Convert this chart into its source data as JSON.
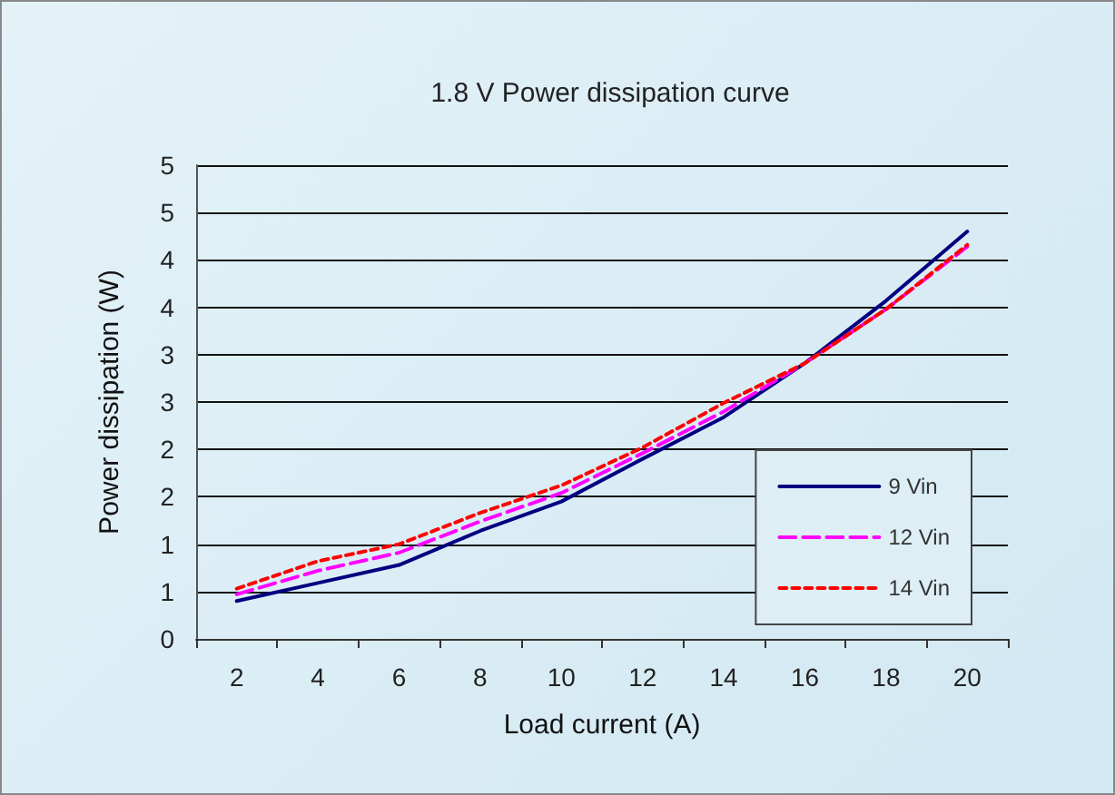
{
  "chart_data": {
    "type": "line",
    "title": "1.8 V Power dissipation curve",
    "xlabel": "Load current (A)",
    "ylabel": "Power dissipation (W)",
    "categories": [
      "2",
      "4",
      "6",
      "8",
      "10",
      "12",
      "14",
      "16",
      "18",
      "20"
    ],
    "series": [
      {
        "name": "9 Vin",
        "color": "#000080",
        "line_style": "solid",
        "values": [
          0.4,
          0.59,
          0.78,
          1.14,
          1.45,
          1.9,
          2.34,
          2.91,
          3.57,
          4.3
        ]
      },
      {
        "name": "12 Vin",
        "color": "#ff00ff",
        "line_style": "dashed",
        "values": [
          0.47,
          0.72,
          0.91,
          1.24,
          1.54,
          1.96,
          2.4,
          2.91,
          3.48,
          4.14
        ]
      },
      {
        "name": "14 Vin",
        "color": "#ff0000",
        "line_style": "dotted",
        "values": [
          0.53,
          0.82,
          1.0,
          1.33,
          1.62,
          2.02,
          2.49,
          2.91,
          3.48,
          4.16
        ]
      }
    ],
    "ylim": [
      0,
      5
    ],
    "yticks": [
      0,
      {
        "value": 0.5,
        "label": "1"
      },
      1,
      {
        "value": 1.5,
        "label": "2"
      },
      2,
      {
        "value": 2.5,
        "label": "3"
      },
      3,
      {
        "value": 3.5,
        "label": "4"
      },
      4,
      {
        "value": 4.5,
        "label": "5"
      },
      5
    ],
    "grid": "y",
    "legend": "bottom right",
    "marker": "none"
  }
}
